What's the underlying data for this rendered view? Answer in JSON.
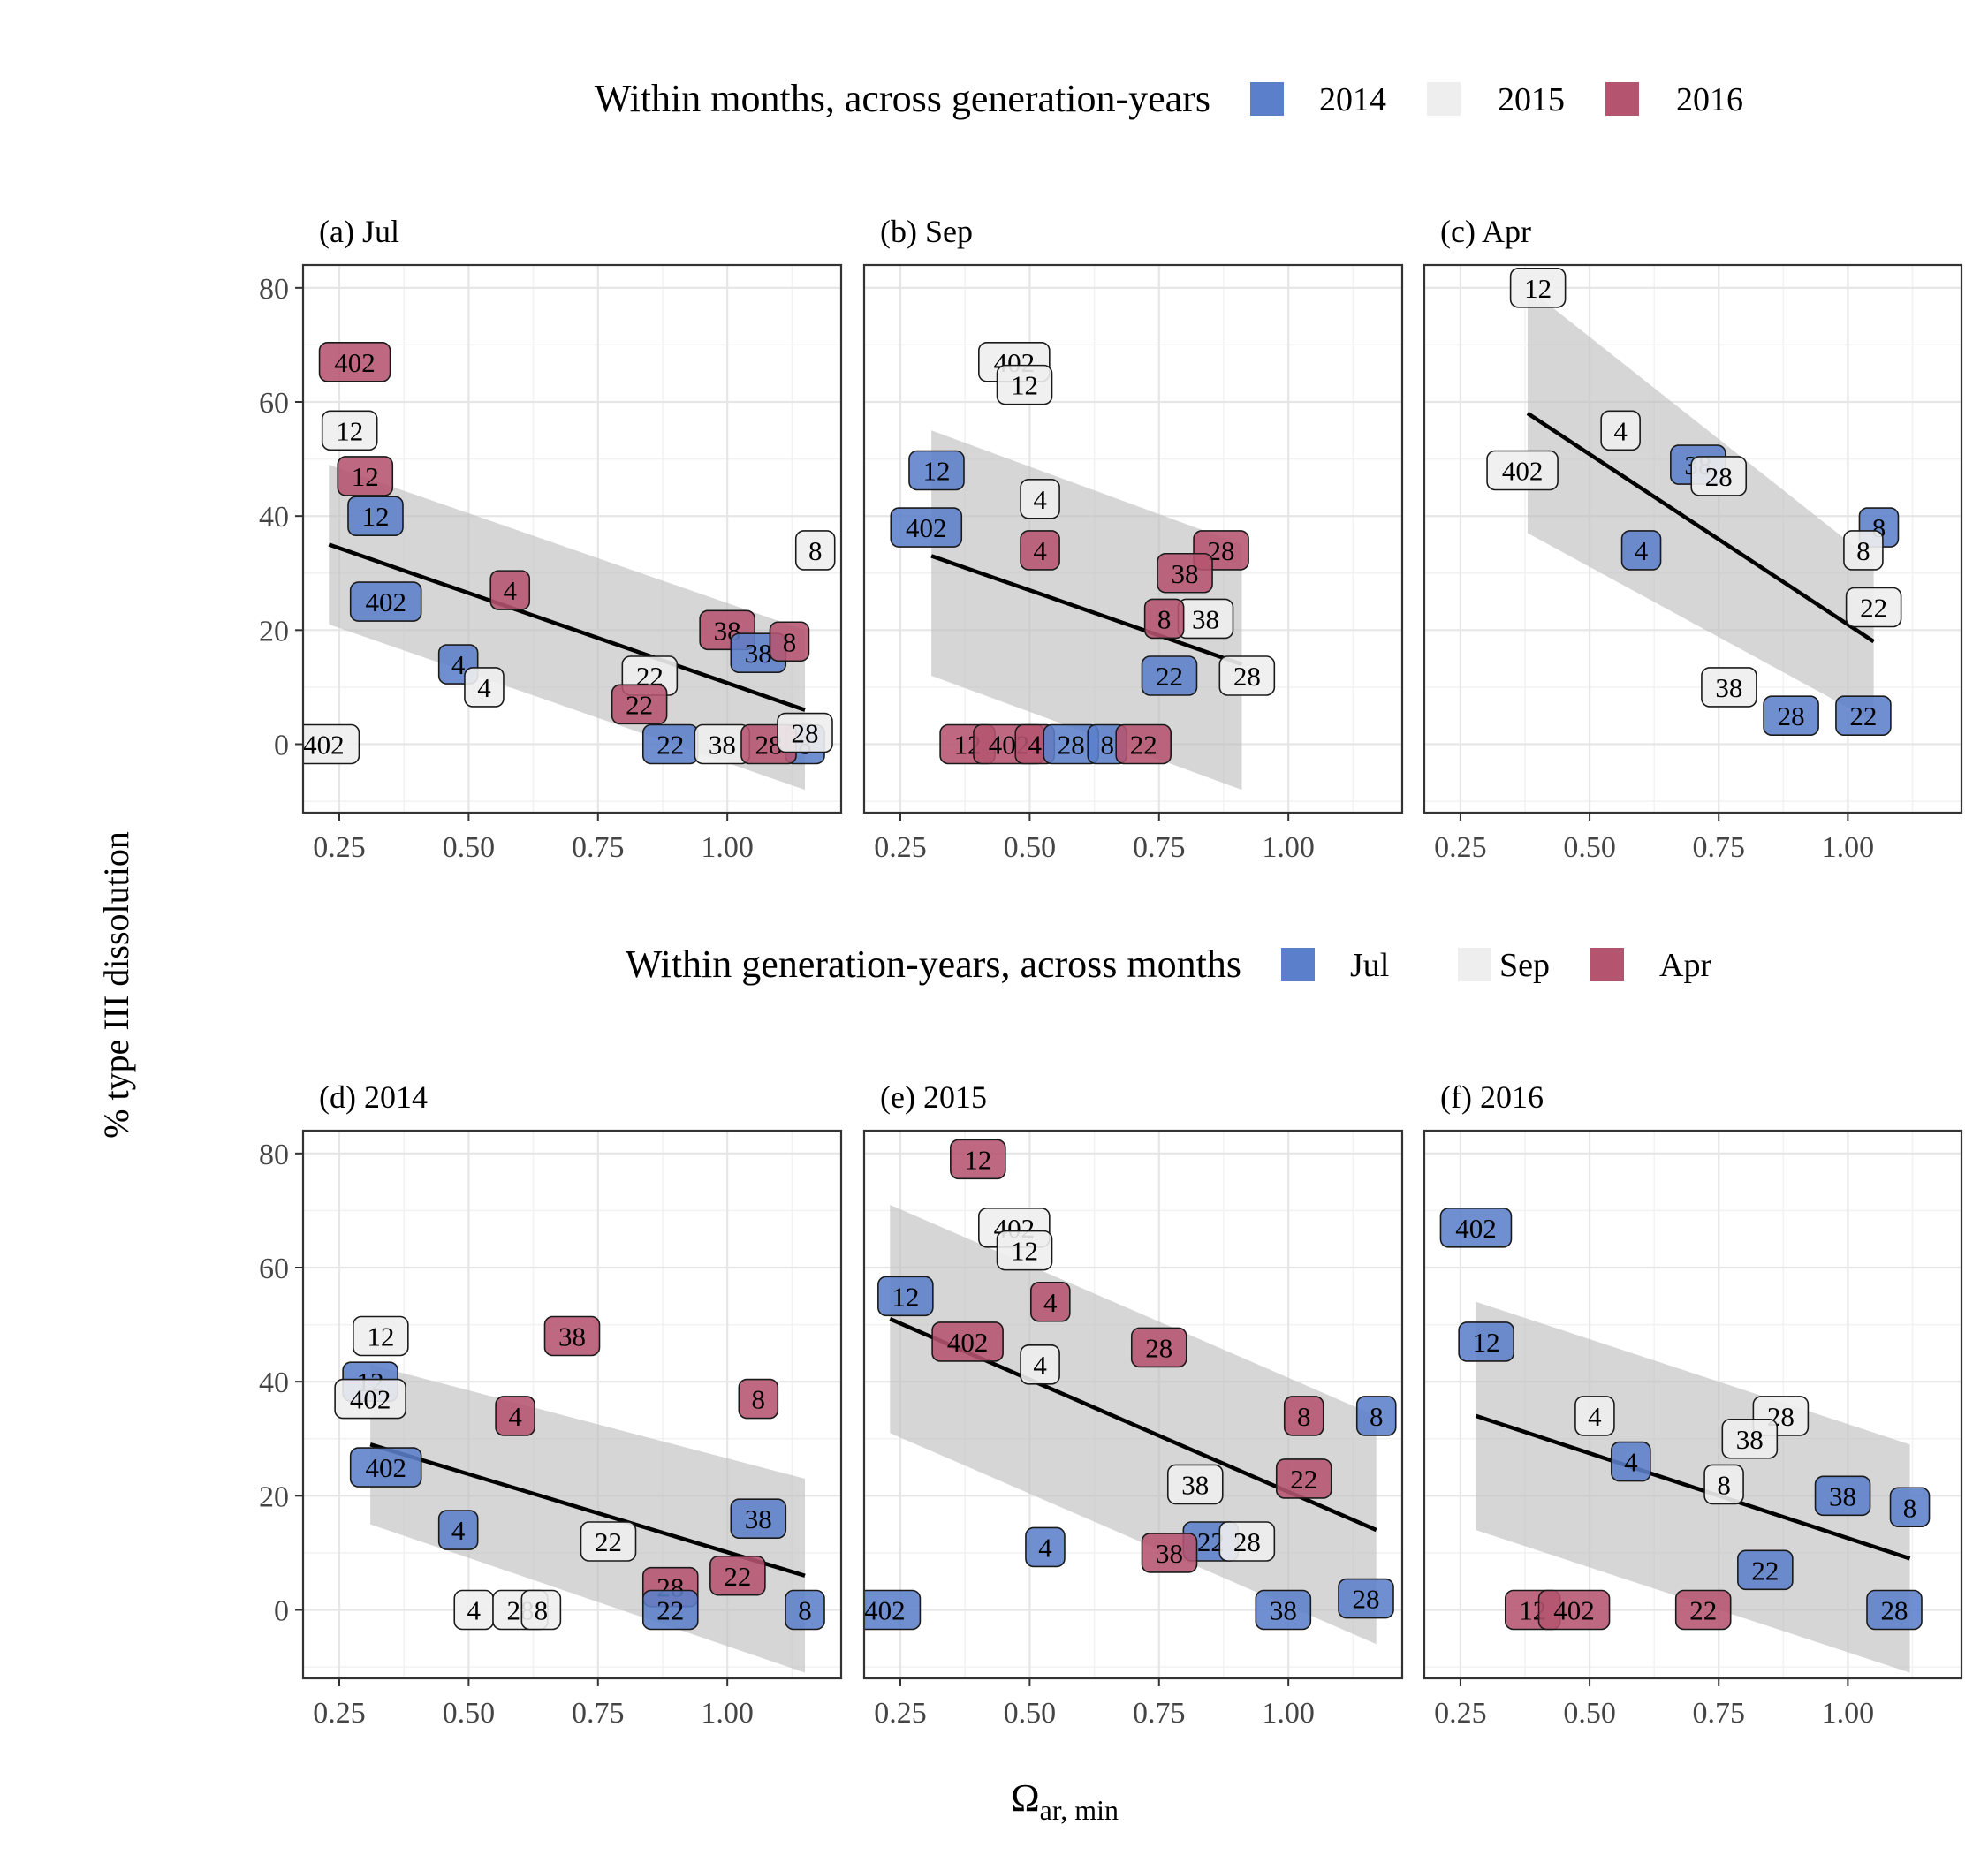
{
  "figure": {
    "y_axis_label": "% type III dissolution",
    "x_axis_label_main": "Ω",
    "x_axis_label_sub": "ar, min"
  },
  "legends": [
    {
      "title": "Within months, across generation-years",
      "entries": [
        {
          "label": "2014",
          "color": "#5B7FCB"
        },
        {
          "label": "2015",
          "color": "#EEEEEE"
        },
        {
          "label": "2016",
          "color": "#B5546F"
        }
      ]
    },
    {
      "title": "Within generation-years, across months",
      "entries": [
        {
          "label": "Jul",
          "color": "#5B7FCB"
        },
        {
          "label": "Sep",
          "color": "#EEEEEE"
        },
        {
          "label": "Apr",
          "color": "#B5546F"
        }
      ]
    }
  ],
  "colors": {
    "blue": "#5B7FCB",
    "light": "#EEEEEE",
    "red": "#B5546F",
    "ribbon": "#BDBDBD",
    "fit_line": "#000000"
  },
  "chart_data": [
    {
      "type": "scatter",
      "title": "(a) Jul",
      "xlabel": "Ωar, min",
      "ylabel": "% type III dissolution",
      "xlim": [
        0.18,
        1.22
      ],
      "ylim": [
        -12,
        84
      ],
      "xticks": [
        "0.25",
        "0.50",
        "0.75",
        "1.00"
      ],
      "yticks": [
        "0",
        "20",
        "40",
        "60",
        "80"
      ],
      "fit": {
        "x": [
          0.23,
          1.15
        ],
        "y": [
          35,
          6
        ],
        "band_lower": [
          21,
          -8
        ],
        "band_upper": [
          49,
          20
        ]
      },
      "points": [
        {
          "x": 0.28,
          "y": 67,
          "label": "402",
          "group": "2016"
        },
        {
          "x": 0.27,
          "y": 55,
          "label": "12",
          "group": "2015"
        },
        {
          "x": 0.3,
          "y": 47,
          "label": "12",
          "group": "2016"
        },
        {
          "x": 0.32,
          "y": 40,
          "label": "12",
          "group": "2014"
        },
        {
          "x": 0.34,
          "y": 25,
          "label": "402",
          "group": "2014"
        },
        {
          "x": 0.58,
          "y": 27,
          "label": "4",
          "group": "2016"
        },
        {
          "x": 0.48,
          "y": 14,
          "label": "4",
          "group": "2014"
        },
        {
          "x": 0.53,
          "y": 10,
          "label": "4",
          "group": "2015"
        },
        {
          "x": 0.22,
          "y": 0,
          "label": "402",
          "group": "2015"
        },
        {
          "x": 0.85,
          "y": 12,
          "label": "22",
          "group": "2015"
        },
        {
          "x": 0.83,
          "y": 7,
          "label": "22",
          "group": "2016"
        },
        {
          "x": 0.89,
          "y": 0,
          "label": "22",
          "group": "2014"
        },
        {
          "x": 0.99,
          "y": 0,
          "label": "38",
          "group": "2015"
        },
        {
          "x": 1.0,
          "y": 20,
          "label": "38",
          "group": "2016"
        },
        {
          "x": 1.06,
          "y": 16,
          "label": "38",
          "group": "2014"
        },
        {
          "x": 1.12,
          "y": 18,
          "label": "8",
          "group": "2016"
        },
        {
          "x": 1.17,
          "y": 34,
          "label": "8",
          "group": "2015"
        },
        {
          "x": 1.15,
          "y": 0,
          "label": "8",
          "group": "2014"
        },
        {
          "x": 1.08,
          "y": 0,
          "label": "28",
          "group": "2016"
        },
        {
          "x": 1.15,
          "y": 2,
          "label": "28",
          "group": "2015"
        }
      ]
    },
    {
      "type": "scatter",
      "title": "(b) Sep",
      "xlabel": "Ωar, min",
      "ylabel": "% type III dissolution",
      "xlim": [
        0.18,
        1.22
      ],
      "ylim": [
        -12,
        84
      ],
      "xticks": [
        "0.25",
        "0.50",
        "0.75",
        "1.00"
      ],
      "yticks": [
        "0",
        "20",
        "40",
        "60",
        "80"
      ],
      "fit": {
        "x": [
          0.31,
          0.91
        ],
        "y": [
          33,
          14
        ],
        "band_lower": [
          12,
          -8
        ],
        "band_upper": [
          55,
          35
        ]
      },
      "points": [
        {
          "x": 0.47,
          "y": 67,
          "label": "402",
          "group": "2015"
        },
        {
          "x": 0.49,
          "y": 63,
          "label": "12",
          "group": "2015"
        },
        {
          "x": 0.32,
          "y": 48,
          "label": "12",
          "group": "2014"
        },
        {
          "x": 0.3,
          "y": 38,
          "label": "402",
          "group": "2014"
        },
        {
          "x": 0.52,
          "y": 43,
          "label": "4",
          "group": "2015"
        },
        {
          "x": 0.52,
          "y": 34,
          "label": "4",
          "group": "2016"
        },
        {
          "x": 0.87,
          "y": 34,
          "label": "28",
          "group": "2016"
        },
        {
          "x": 0.8,
          "y": 30,
          "label": "38",
          "group": "2016"
        },
        {
          "x": 0.84,
          "y": 22,
          "label": "38",
          "group": "2015"
        },
        {
          "x": 0.76,
          "y": 22,
          "label": "8",
          "group": "2016"
        },
        {
          "x": 0.77,
          "y": 12,
          "label": "22",
          "group": "2014"
        },
        {
          "x": 0.92,
          "y": 12,
          "label": "28",
          "group": "2015"
        },
        {
          "x": 0.38,
          "y": 0,
          "label": "12",
          "group": "2016"
        },
        {
          "x": 0.46,
          "y": 0,
          "label": "402",
          "group": "2016"
        },
        {
          "x": 0.51,
          "y": 0,
          "label": "4",
          "group": "2016"
        },
        {
          "x": 0.58,
          "y": 0,
          "label": "28",
          "group": "2014"
        },
        {
          "x": 0.65,
          "y": 0,
          "label": "8",
          "group": "2014"
        },
        {
          "x": 0.72,
          "y": 0,
          "label": "22",
          "group": "2016"
        }
      ]
    },
    {
      "type": "scatter",
      "title": "(c) Apr",
      "xlabel": "Ωar, min",
      "ylabel": "% type III dissolution",
      "xlim": [
        0.18,
        1.22
      ],
      "ylim": [
        -12,
        84
      ],
      "xticks": [
        "0.25",
        "0.50",
        "0.75",
        "1.00"
      ],
      "yticks": [
        "0",
        "20",
        "40",
        "60",
        "80"
      ],
      "fit": {
        "x": [
          0.38,
          1.05
        ],
        "y": [
          58,
          18
        ],
        "band_lower": [
          37,
          4
        ],
        "band_upper": [
          80,
          32
        ]
      },
      "points": [
        {
          "x": 0.4,
          "y": 80,
          "label": "12",
          "group": "2015"
        },
        {
          "x": 0.56,
          "y": 55,
          "label": "4",
          "group": "2015"
        },
        {
          "x": 0.37,
          "y": 48,
          "label": "402",
          "group": "2015"
        },
        {
          "x": 0.71,
          "y": 49,
          "label": "38",
          "group": "2014"
        },
        {
          "x": 0.75,
          "y": 47,
          "label": "28",
          "group": "2015"
        },
        {
          "x": 0.6,
          "y": 34,
          "label": "4",
          "group": "2014"
        },
        {
          "x": 1.06,
          "y": 38,
          "label": "8",
          "group": "2014"
        },
        {
          "x": 1.03,
          "y": 34,
          "label": "8",
          "group": "2015"
        },
        {
          "x": 1.05,
          "y": 24,
          "label": "22",
          "group": "2015"
        },
        {
          "x": 0.77,
          "y": 10,
          "label": "38",
          "group": "2015"
        },
        {
          "x": 0.89,
          "y": 5,
          "label": "28",
          "group": "2014"
        },
        {
          "x": 1.03,
          "y": 5,
          "label": "22",
          "group": "2014"
        }
      ]
    },
    {
      "type": "scatter",
      "title": "(d) 2014",
      "xlabel": "Ωar, min",
      "ylabel": "% type III dissolution",
      "xlim": [
        0.18,
        1.22
      ],
      "ylim": [
        -12,
        84
      ],
      "xticks": [
        "0.25",
        "0.50",
        "0.75",
        "1.00"
      ],
      "yticks": [
        "0",
        "20",
        "40",
        "60",
        "80"
      ],
      "fit": {
        "x": [
          0.31,
          1.15
        ],
        "y": [
          29,
          6
        ],
        "band_lower": [
          15,
          -11
        ],
        "band_upper": [
          43,
          23
        ]
      },
      "points": [
        {
          "x": 0.33,
          "y": 48,
          "label": "12",
          "group": "Sep"
        },
        {
          "x": 0.31,
          "y": 40,
          "label": "12",
          "group": "Jul"
        },
        {
          "x": 0.31,
          "y": 37,
          "label": "402",
          "group": "Sep"
        },
        {
          "x": 0.34,
          "y": 25,
          "label": "402",
          "group": "Jul"
        },
        {
          "x": 0.7,
          "y": 48,
          "label": "38",
          "group": "Apr"
        },
        {
          "x": 0.59,
          "y": 34,
          "label": "4",
          "group": "Apr"
        },
        {
          "x": 0.48,
          "y": 14,
          "label": "4",
          "group": "Jul"
        },
        {
          "x": 0.51,
          "y": 0,
          "label": "4",
          "group": "Sep"
        },
        {
          "x": 0.6,
          "y": 0,
          "label": "28",
          "group": "Sep"
        },
        {
          "x": 0.64,
          "y": 0,
          "label": "8",
          "group": "Sep"
        },
        {
          "x": 0.77,
          "y": 12,
          "label": "22",
          "group": "Sep"
        },
        {
          "x": 0.89,
          "y": 4,
          "label": "28",
          "group": "Apr"
        },
        {
          "x": 0.89,
          "y": 0,
          "label": "22",
          "group": "Jul"
        },
        {
          "x": 1.02,
          "y": 6,
          "label": "22",
          "group": "Apr"
        },
        {
          "x": 1.06,
          "y": 16,
          "label": "38",
          "group": "Jul"
        },
        {
          "x": 1.06,
          "y": 37,
          "label": "8",
          "group": "Apr"
        },
        {
          "x": 1.15,
          "y": 0,
          "label": "8",
          "group": "Jul"
        }
      ]
    },
    {
      "type": "scatter",
      "title": "(e) 2015",
      "xlabel": "Ωar, min",
      "ylabel": "% type III dissolution",
      "xlim": [
        0.18,
        1.22
      ],
      "ylim": [
        -12,
        84
      ],
      "xticks": [
        "0.25",
        "0.50",
        "0.75",
        "1.00"
      ],
      "yticks": [
        "0",
        "20",
        "40",
        "60",
        "80"
      ],
      "fit": {
        "x": [
          0.23,
          1.17
        ],
        "y": [
          51,
          14
        ],
        "band_lower": [
          31,
          -6
        ],
        "band_upper": [
          71,
          34
        ]
      },
      "points": [
        {
          "x": 0.4,
          "y": 79,
          "label": "12",
          "group": "Apr"
        },
        {
          "x": 0.47,
          "y": 67,
          "label": "402",
          "group": "Sep"
        },
        {
          "x": 0.49,
          "y": 63,
          "label": "12",
          "group": "Sep"
        },
        {
          "x": 0.26,
          "y": 55,
          "label": "12",
          "group": "Jul"
        },
        {
          "x": 0.54,
          "y": 54,
          "label": "4",
          "group": "Apr"
        },
        {
          "x": 0.38,
          "y": 47,
          "label": "402",
          "group": "Apr"
        },
        {
          "x": 0.52,
          "y": 43,
          "label": "4",
          "group": "Sep"
        },
        {
          "x": 0.75,
          "y": 46,
          "label": "28",
          "group": "Apr"
        },
        {
          "x": 1.03,
          "y": 34,
          "label": "8",
          "group": "Apr"
        },
        {
          "x": 1.17,
          "y": 34,
          "label": "8",
          "group": "Jul"
        },
        {
          "x": 1.03,
          "y": 23,
          "label": "22",
          "group": "Apr"
        },
        {
          "x": 0.82,
          "y": 22,
          "label": "38",
          "group": "Sep"
        },
        {
          "x": 0.85,
          "y": 12,
          "label": "22",
          "group": "Jul"
        },
        {
          "x": 0.92,
          "y": 12,
          "label": "28",
          "group": "Sep"
        },
        {
          "x": 0.77,
          "y": 10,
          "label": "38",
          "group": "Apr"
        },
        {
          "x": 0.53,
          "y": 11,
          "label": "4",
          "group": "Jul"
        },
        {
          "x": 0.22,
          "y": 0,
          "label": "402",
          "group": "Jul"
        },
        {
          "x": 0.99,
          "y": 0,
          "label": "38",
          "group": "Jul"
        },
        {
          "x": 1.15,
          "y": 2,
          "label": "28",
          "group": "Jul"
        }
      ]
    },
    {
      "type": "scatter",
      "title": "(f) 2016",
      "xlabel": "Ωar, min",
      "ylabel": "% type III dissolution",
      "xlim": [
        0.18,
        1.22
      ],
      "ylim": [
        -12,
        84
      ],
      "xticks": [
        "0.25",
        "0.50",
        "0.75",
        "1.00"
      ],
      "yticks": [
        "0",
        "20",
        "40",
        "60",
        "80"
      ],
      "fit": {
        "x": [
          0.28,
          1.12
        ],
        "y": [
          34,
          9
        ],
        "band_lower": [
          14,
          -11
        ],
        "band_upper": [
          54,
          29
        ]
      },
      "points": [
        {
          "x": 0.28,
          "y": 67,
          "label": "402",
          "group": "Jul"
        },
        {
          "x": 0.3,
          "y": 47,
          "label": "12",
          "group": "Jul"
        },
        {
          "x": 0.51,
          "y": 34,
          "label": "4",
          "group": "Sep"
        },
        {
          "x": 0.58,
          "y": 26,
          "label": "4",
          "group": "Jul"
        },
        {
          "x": 0.87,
          "y": 34,
          "label": "28",
          "group": "Sep"
        },
        {
          "x": 0.81,
          "y": 30,
          "label": "38",
          "group": "Sep"
        },
        {
          "x": 0.76,
          "y": 22,
          "label": "8",
          "group": "Sep"
        },
        {
          "x": 0.99,
          "y": 20,
          "label": "38",
          "group": "Jul"
        },
        {
          "x": 1.12,
          "y": 18,
          "label": "8",
          "group": "Jul"
        },
        {
          "x": 0.84,
          "y": 7,
          "label": "22",
          "group": "Jul"
        },
        {
          "x": 0.39,
          "y": 0,
          "label": "12",
          "group": "Apr"
        },
        {
          "x": 0.47,
          "y": 0,
          "label": "402",
          "group": "Apr"
        },
        {
          "x": 0.72,
          "y": 0,
          "label": "22",
          "group": "Apr"
        },
        {
          "x": 1.09,
          "y": 0,
          "label": "28",
          "group": "Jul"
        }
      ]
    }
  ]
}
